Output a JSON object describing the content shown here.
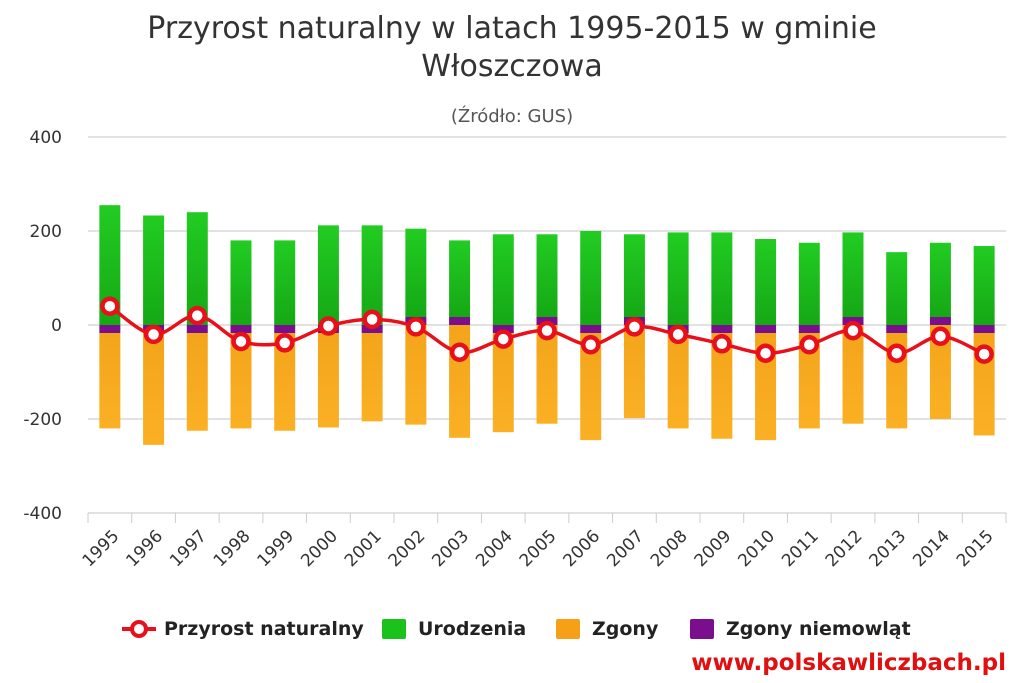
{
  "chart_data": {
    "type": "bar",
    "title_line1": "Przyrost naturalny w latach 1995-2015 w gminie",
    "title_line2": "Włoszczowa",
    "subtitle": "(Źródło: GUS)",
    "categories": [
      "1995",
      "1996",
      "1997",
      "1998",
      "1999",
      "2000",
      "2001",
      "2002",
      "2003",
      "2004",
      "2005",
      "2006",
      "2007",
      "2008",
      "2009",
      "2010",
      "2011",
      "2012",
      "2013",
      "2014",
      "2015"
    ],
    "ylim": [
      -400,
      400
    ],
    "yticks": [
      400,
      200,
      0,
      -200,
      -400
    ],
    "ytick_labels": [
      "400",
      "200",
      "0",
      "-200",
      "-400"
    ],
    "grid": true,
    "legend_position": "bottom",
    "series": [
      {
        "name": "Przyrost naturalny",
        "type": "line",
        "color": "#e8101a",
        "values": [
          40,
          -20,
          20,
          -35,
          -38,
          -2,
          12,
          -4,
          -58,
          -30,
          -12,
          -42,
          -4,
          -20,
          -40,
          -60,
          -42,
          -12,
          -60,
          -24,
          -62
        ]
      },
      {
        "name": "Urodzenia",
        "type": "bar",
        "color": "#1cc21c",
        "values": [
          255,
          233,
          240,
          180,
          180,
          212,
          212,
          205,
          180,
          193,
          193,
          200,
          193,
          197,
          197,
          183,
          175,
          197,
          155,
          175,
          168
        ]
      },
      {
        "name": "Zgony",
        "type": "bar",
        "color": "#f5a016",
        "values": [
          -220,
          -255,
          -225,
          -220,
          -225,
          -218,
          -205,
          -212,
          -240,
          -228,
          -210,
          -245,
          -198,
          -220,
          -242,
          -245,
          -220,
          -210,
          -220,
          -200,
          -235
        ]
      },
      {
        "name": "Zgony niemowląt",
        "type": "bar",
        "color": "#7b0e8c",
        "values": [
          -1,
          -1,
          -1,
          -1,
          -1,
          -1,
          -1,
          1,
          1,
          -1,
          1,
          -1,
          1,
          -1,
          -1,
          -1,
          -1,
          1,
          -1,
          1,
          -1
        ]
      }
    ]
  },
  "credit": "www.polskawliczbach.pl"
}
